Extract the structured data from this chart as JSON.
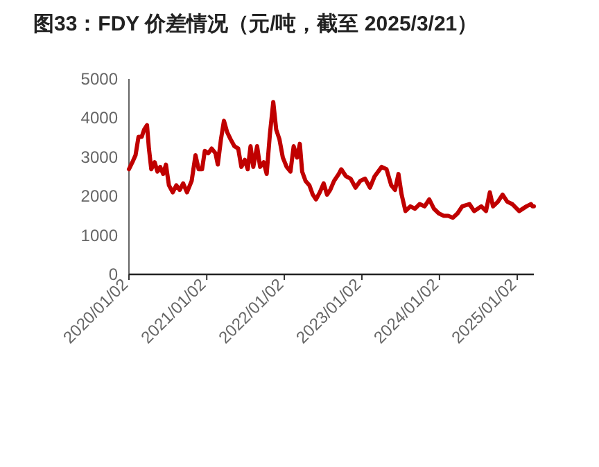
{
  "chart_data": {
    "type": "line",
    "title": "图33：FDY 价差情况（元/吨，截至 2025/3/21）",
    "x": [
      "2020-01-02",
      "2020-01-18",
      "2020-02-02",
      "2020-02-16",
      "2020-03-02",
      "2020-03-13",
      "2020-03-27",
      "2020-04-05",
      "2020-04-16",
      "2020-05-02",
      "2020-05-15",
      "2020-05-28",
      "2020-06-11",
      "2020-06-24",
      "2020-07-08",
      "2020-07-26",
      "2020-08-12",
      "2020-08-28",
      "2020-09-13",
      "2020-10-01",
      "2020-10-23",
      "2020-11-10",
      "2020-11-25",
      "2020-12-11",
      "2020-12-24",
      "2021-01-09",
      "2021-01-25",
      "2021-02-12",
      "2021-02-23",
      "2021-03-10",
      "2021-03-24",
      "2021-04-08",
      "2021-04-24",
      "2021-05-12",
      "2021-05-30",
      "2021-06-14",
      "2021-06-30",
      "2021-07-14",
      "2021-07-27",
      "2021-08-09",
      "2021-08-27",
      "2021-09-10",
      "2021-09-27",
      "2021-10-11",
      "2021-10-26",
      "2021-11-11",
      "2021-11-25",
      "2021-12-10",
      "2021-12-26",
      "2022-01-13",
      "2022-01-31",
      "2022-02-15",
      "2022-03-03",
      "2022-03-16",
      "2022-03-27",
      "2022-04-12",
      "2022-04-30",
      "2022-05-16",
      "2022-05-31",
      "2022-06-18",
      "2022-07-06",
      "2022-07-22",
      "2022-08-06",
      "2022-08-24",
      "2022-09-15",
      "2022-09-27",
      "2022-10-19",
      "2022-11-10",
      "2022-12-03",
      "2022-12-25",
      "2023-01-17",
      "2023-02-09",
      "2023-03-03",
      "2023-04-05",
      "2023-04-28",
      "2023-05-20",
      "2023-06-07",
      "2023-06-23",
      "2023-07-08",
      "2023-07-26",
      "2023-08-18",
      "2023-09-09",
      "2023-10-01",
      "2023-10-24",
      "2023-11-15",
      "2023-12-07",
      "2023-12-30",
      "2024-01-21",
      "2024-02-12",
      "2024-03-05",
      "2024-03-27",
      "2024-04-18",
      "2024-05-22",
      "2024-06-13",
      "2024-07-17",
      "2024-08-08",
      "2024-08-26",
      "2024-09-10",
      "2024-10-03",
      "2024-10-25",
      "2024-11-16",
      "2024-12-09",
      "2025-01-11",
      "2025-02-14",
      "2025-03-08",
      "2025-03-15",
      "2025-03-21"
    ],
    "series": [
      {
        "color": "#c00000",
        "values": [
          2690,
          2870,
          3050,
          3520,
          3520,
          3700,
          3820,
          3220,
          2690,
          2870,
          2630,
          2750,
          2570,
          2810,
          2280,
          2100,
          2280,
          2160,
          2330,
          2100,
          2390,
          3050,
          2690,
          2690,
          3160,
          3100,
          3220,
          3100,
          2810,
          3460,
          3930,
          3640,
          3460,
          3280,
          3220,
          2750,
          2930,
          2690,
          3280,
          2750,
          3280,
          2750,
          2870,
          2570,
          3580,
          4410,
          3700,
          3460,
          2990,
          2750,
          2630,
          3280,
          2990,
          3340,
          2630,
          2390,
          2280,
          2040,
          1920,
          2100,
          2330,
          2040,
          2160,
          2390,
          2570,
          2690,
          2510,
          2450,
          2220,
          2390,
          2450,
          2220,
          2510,
          2750,
          2690,
          2280,
          2160,
          2570,
          2040,
          1620,
          1740,
          1680,
          1800,
          1740,
          1920,
          1680,
          1560,
          1500,
          1500,
          1450,
          1560,
          1740,
          1800,
          1620,
          1740,
          1620,
          2100,
          1740,
          1860,
          2040,
          1860,
          1800,
          1620,
          1740,
          1800,
          1740,
          1740
        ]
      }
    ],
    "xlim": [
      "2020-01-02",
      "2025-03-21"
    ],
    "xticks": [
      {
        "value": "2020-01-02",
        "label": "2020/01/02"
      },
      {
        "value": "2021-01-02",
        "label": "2021/01/02"
      },
      {
        "value": "2022-01-02",
        "label": "2022/01/02"
      },
      {
        "value": "2023-01-02",
        "label": "2023/01/02"
      },
      {
        "value": "2024-01-02",
        "label": "2024/01/02"
      },
      {
        "value": "2025-01-02",
        "label": "2025/01/02"
      }
    ],
    "ylim": [
      0,
      5000
    ],
    "yticks": [
      0,
      1000,
      2000,
      3000,
      4000,
      5000
    ],
    "grid": false,
    "marker": "none",
    "line_style": "solid"
  }
}
